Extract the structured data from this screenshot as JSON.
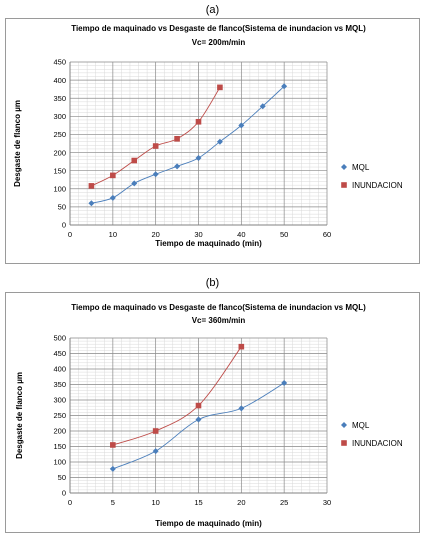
{
  "panels": [
    {
      "letter": "(a)",
      "chart_data": {
        "type": "scatter",
        "title_lines": [
          "Tiempo de maquinado vs Desgaste de flanco(Sistema de inundacion vs MQL)",
          "Vc= 200m/min"
        ],
        "xlabel": "Tiempo de maquinado (min)",
        "ylabel": "Desgaste de flanco µm",
        "xlim": [
          0,
          60
        ],
        "ylim": [
          0,
          450
        ],
        "xticks": [
          0,
          10,
          20,
          30,
          40,
          50,
          60
        ],
        "yticks": [
          0,
          50,
          100,
          150,
          200,
          250,
          300,
          350,
          400,
          450
        ],
        "grid": true,
        "legend_position": "right",
        "series": [
          {
            "name": "MQL",
            "color": "#4a7ebb",
            "marker": "diamond",
            "x": [
              5,
              10,
              15,
              20,
              25,
              30,
              35,
              40,
              45,
              50
            ],
            "y": [
              60,
              75,
              115,
              140,
              162,
              185,
              230,
              275,
              328,
              383
            ]
          },
          {
            "name": "INUNDACION",
            "color": "#be4b48",
            "marker": "square",
            "x": [
              5,
              10,
              15,
              20,
              25,
              30,
              35
            ],
            "y": [
              108,
              137,
              178,
              218,
              238,
              285,
              380
            ]
          }
        ]
      }
    },
    {
      "letter": "(b)",
      "chart_data": {
        "type": "scatter",
        "title_lines": [
          "Tiempo de maquinado vs Desgaste de flanco(Sistema de inundacion vs MQL)",
          "Vc= 360m/min"
        ],
        "xlabel": "Tiempo de maquinado (min)",
        "ylabel": "Desgaste de flanco µm",
        "xlim": [
          0,
          30
        ],
        "ylim": [
          0,
          500
        ],
        "xticks": [
          0,
          5,
          10,
          15,
          20,
          25,
          30
        ],
        "yticks": [
          0,
          50,
          100,
          150,
          200,
          250,
          300,
          350,
          400,
          450,
          500
        ],
        "grid": true,
        "legend_position": "right",
        "series": [
          {
            "name": "MQL",
            "color": "#4a7ebb",
            "marker": "diamond",
            "x": [
              5,
              10,
              15,
              20,
              25
            ],
            "y": [
              78,
              135,
              237,
              273,
              355
            ]
          },
          {
            "name": "INUNDACION",
            "color": "#be4b48",
            "marker": "square",
            "x": [
              5,
              10,
              15,
              20
            ],
            "y": [
              155,
              200,
              282,
              472
            ]
          }
        ]
      }
    }
  ]
}
